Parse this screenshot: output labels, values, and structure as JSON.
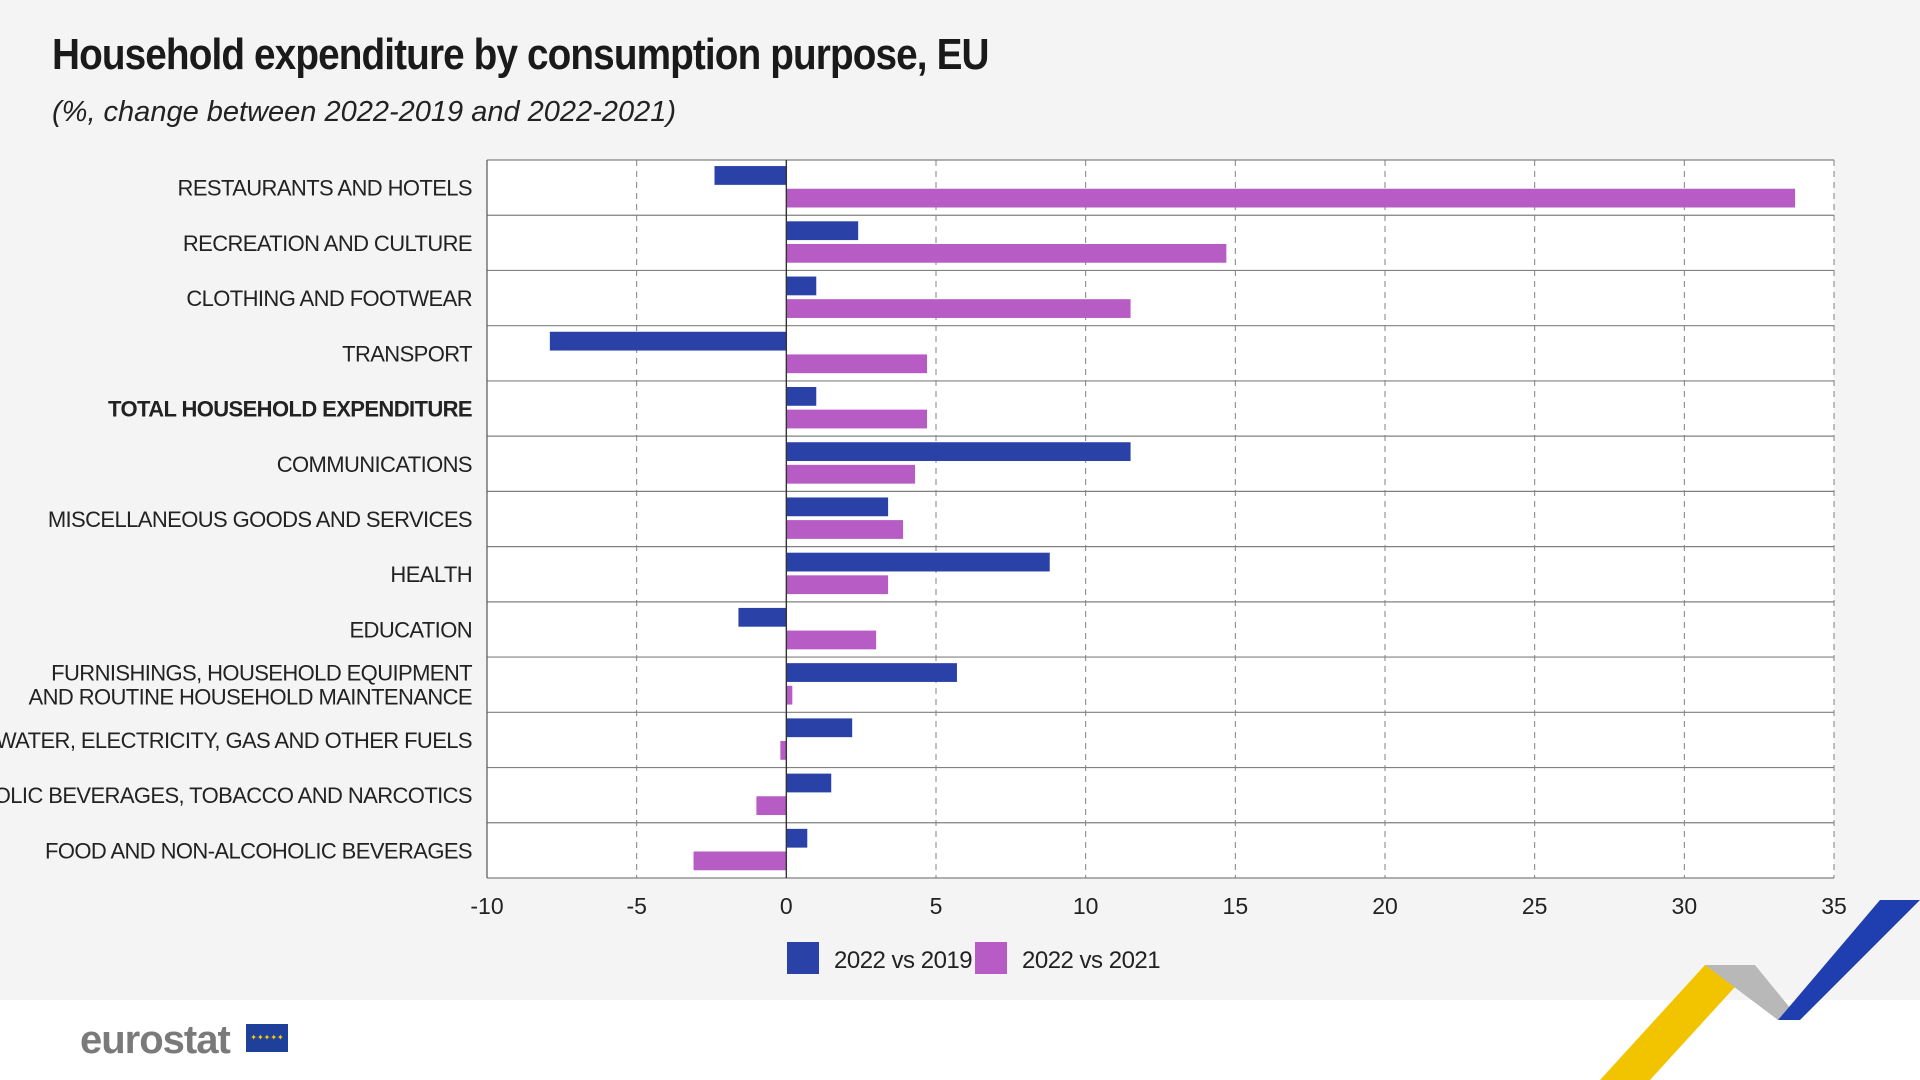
{
  "title": "Household expenditure by consumption purpose, EU",
  "subtitle": "(%, change between 2022-2019 and 2022-2021)",
  "logo_text": "eurostat",
  "colors": {
    "series_2019": "#2a42a8",
    "series_2021": "#b65cc4",
    "grid": "#808080",
    "text": "#222222"
  },
  "chart_data": {
    "type": "bar",
    "orientation": "horizontal",
    "categories": [
      [
        "RESTAURANTS AND HOTELS"
      ],
      [
        "RECREATION AND CULTURE"
      ],
      [
        "CLOTHING AND FOOTWEAR"
      ],
      [
        "TRANSPORT"
      ],
      [
        "TOTAL HOUSEHOLD EXPENDITURE"
      ],
      [
        "COMMUNICATIONS"
      ],
      [
        "MISCELLANEOUS GOODS AND SERVICES"
      ],
      [
        "HEALTH"
      ],
      [
        "EDUCATION"
      ],
      [
        "FURNISHINGS, HOUSEHOLD EQUIPMENT",
        "AND ROUTINE HOUSEHOLD MAINTENANCE"
      ],
      [
        "HOUSING, WATER, ELECTRICITY, GAS AND OTHER FUELS"
      ],
      [
        "ALCOHOLIC BEVERAGES, TOBACCO AND NARCOTICS"
      ],
      [
        "FOOD AND NON-ALCOHOLIC BEVERAGES"
      ]
    ],
    "bold_category": "TOTAL HOUSEHOLD EXPENDITURE",
    "series": [
      {
        "name": "2022 vs 2019",
        "values": [
          -2.4,
          2.4,
          1.0,
          -7.9,
          1.0,
          11.5,
          3.4,
          8.8,
          -1.6,
          5.7,
          2.2,
          1.5,
          0.7
        ]
      },
      {
        "name": "2022 vs 2021",
        "values": [
          33.7,
          14.7,
          11.5,
          4.7,
          4.7,
          4.3,
          3.9,
          3.4,
          3.0,
          0.2,
          -0.2,
          -1.0,
          -3.1
        ]
      }
    ],
    "xlim": [
      -10,
      35
    ],
    "xticks": [
      -10,
      -5,
      0,
      5,
      10,
      15,
      20,
      25,
      30,
      35
    ],
    "grid": true,
    "legend_position": "bottom"
  }
}
